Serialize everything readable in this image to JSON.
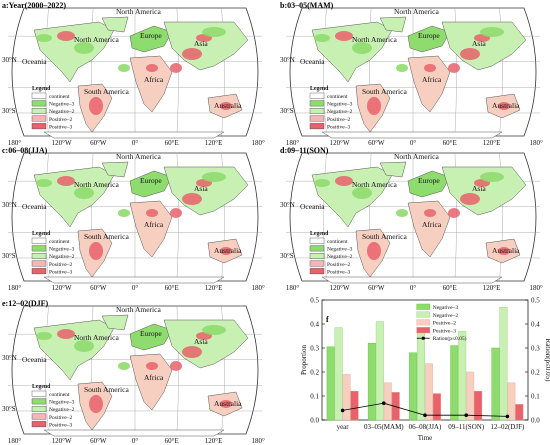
{
  "maps": [
    {
      "id": "a",
      "title": "a:Year(2000–2022)"
    },
    {
      "id": "b",
      "title": "b:03–05(MAM)"
    },
    {
      "id": "c",
      "title": "c:06–08(JJA)"
    },
    {
      "id": "d",
      "title": "d:09–11(SON)"
    },
    {
      "id": "e",
      "title": "e:12–02(DJF)"
    }
  ],
  "continent_labels": [
    "North America",
    "South America",
    "Europe",
    "Asia",
    "Africa",
    "Oceania",
    "Australia",
    "Antarctica"
  ],
  "lat_labels": [
    "30°N",
    "30°S"
  ],
  "lon_labels": [
    "180°",
    "120°W",
    "60°W",
    "0°",
    "60°E",
    "120°E",
    "180°"
  ],
  "legend": {
    "title": "Legend",
    "items": [
      {
        "label": "continent",
        "color": "#ffffff"
      },
      {
        "label": "Negative–3",
        "color": "#8fdc6e"
      },
      {
        "label": "Negative–2",
        "color": "#c9f0b3"
      },
      {
        "label": "Positive–2",
        "color": "#f2b6b6"
      },
      {
        "label": "Positive–3",
        "color": "#e8616b"
      }
    ]
  },
  "colors": {
    "neg3": "#8fdc6e",
    "neg2": "#c9f0b3",
    "pos2": "#f6cfc0",
    "pos3": "#e8616b",
    "line": "#000000"
  },
  "chart_data": {
    "type": "bar",
    "panel_label": "f",
    "categories": [
      "year",
      "03–05(MAM)",
      "06–08(JJA)",
      "09–11(SON)",
      "12–02(DJF)"
    ],
    "xlabel": "Time",
    "ylabel": "Proportion",
    "y2label": "Ration(p≤0.05)",
    "ylim": [
      0,
      0.5
    ],
    "y2lim": [
      0,
      0.5
    ],
    "yticks": [
      "0.0",
      "0.1",
      "0.2",
      "0.3",
      "0.4",
      "0.5"
    ],
    "series": [
      {
        "name": "Negative–3",
        "values": [
          0.305,
          0.32,
          0.28,
          0.31,
          0.3
        ]
      },
      {
        "name": "Negative–2",
        "values": [
          0.385,
          0.41,
          0.375,
          0.37,
          0.47
        ]
      },
      {
        "name": "Positive–2",
        "values": [
          0.19,
          0.155,
          0.235,
          0.2,
          0.155
        ]
      },
      {
        "name": "Positive–3",
        "values": [
          0.12,
          0.115,
          0.11,
          0.12,
          0.065
        ]
      }
    ],
    "line": {
      "name": "Ration(p≤0.05)",
      "values": [
        0.04,
        0.07,
        0.02,
        0.02,
        0.015
      ]
    },
    "legend_position": "top-right"
  }
}
